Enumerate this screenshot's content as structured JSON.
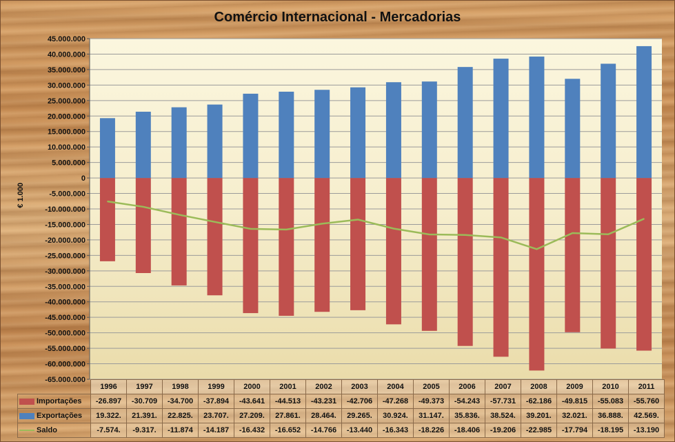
{
  "chart_data": {
    "type": "bar",
    "title": "Comércio Internacional - Mercadorias",
    "ylabel": "€ 1.000",
    "ylim": [
      -65000000,
      45000000
    ],
    "ytick_step": 5000000,
    "ytick_labels": [
      "45.000.000",
      "40.000.000",
      "35.000.000",
      "30.000.000",
      "25.000.000",
      "20.000.000",
      "15.000.000",
      "10.000.000",
      "5.000.000",
      "0",
      "-5.000.000",
      "-10.000.000",
      "-15.000.000",
      "-20.000.000",
      "-25.000.000",
      "-30.000.000",
      "-35.000.000",
      "-40.000.000",
      "-45.000.000",
      "-50.000.000",
      "-55.000.000",
      "-60.000.000",
      "-65.000.000"
    ],
    "categories": [
      "1996",
      "1997",
      "1998",
      "1999",
      "2000",
      "2001",
      "2002",
      "2003",
      "2004",
      "2005",
      "2006",
      "2007",
      "2008",
      "2009",
      "2010",
      "2011"
    ],
    "stacked": true,
    "grid": true,
    "legend": "data-table",
    "series": [
      {
        "name": "Importações",
        "kind": "bar",
        "color": "#c0504d",
        "values": [
          -26897000,
          -30709000,
          -34700000,
          -37894000,
          -43641000,
          -44513000,
          -43231000,
          -42706000,
          -47268000,
          -49373000,
          -54243000,
          -57731000,
          -62186000,
          -49815000,
          -55083000,
          -55760000
        ],
        "table_labels": [
          "-26.897",
          "-30.709",
          "-34.700",
          "-37.894",
          "-43.641",
          "-44.513",
          "-43.231",
          "-42.706",
          "-47.268",
          "-49.373",
          "-54.243",
          "-57.731",
          "-62.186",
          "-49.815",
          "-55.083",
          "-55.760"
        ]
      },
      {
        "name": "Exportações",
        "kind": "bar",
        "color": "#4f81bd",
        "values": [
          19322000,
          21391000,
          22825000,
          23707000,
          27209000,
          27861000,
          28464000,
          29265000,
          30924000,
          31147000,
          35836000,
          38524000,
          39201000,
          32021000,
          36888000,
          42569000
        ],
        "table_labels": [
          "19.322.",
          "21.391.",
          "22.825.",
          "23.707.",
          "27.209.",
          "27.861.",
          "28.464.",
          "29.265.",
          "30.924.",
          "31.147.",
          "35.836.",
          "38.524.",
          "39.201.",
          "32.021.",
          "36.888.",
          "42.569."
        ]
      },
      {
        "name": "Saldo",
        "kind": "line",
        "color": "#9bbb59",
        "values": [
          -7574000,
          -9317000,
          -11874000,
          -14187000,
          -16432000,
          -16652000,
          -14766000,
          -13440000,
          -16343000,
          -18226000,
          -18406000,
          -19206000,
          -22985000,
          -17794000,
          -18195000,
          -13190000
        ],
        "table_labels": [
          "-7.574.",
          "-9.317.",
          "-11.874",
          "-14.187",
          "-16.432",
          "-16.652",
          "-14.766",
          "-13.440",
          "-16.343",
          "-18.226",
          "-18.406",
          "-19.206",
          "-22.985",
          "-17.794",
          "-18.195",
          "-13.190"
        ]
      }
    ]
  }
}
